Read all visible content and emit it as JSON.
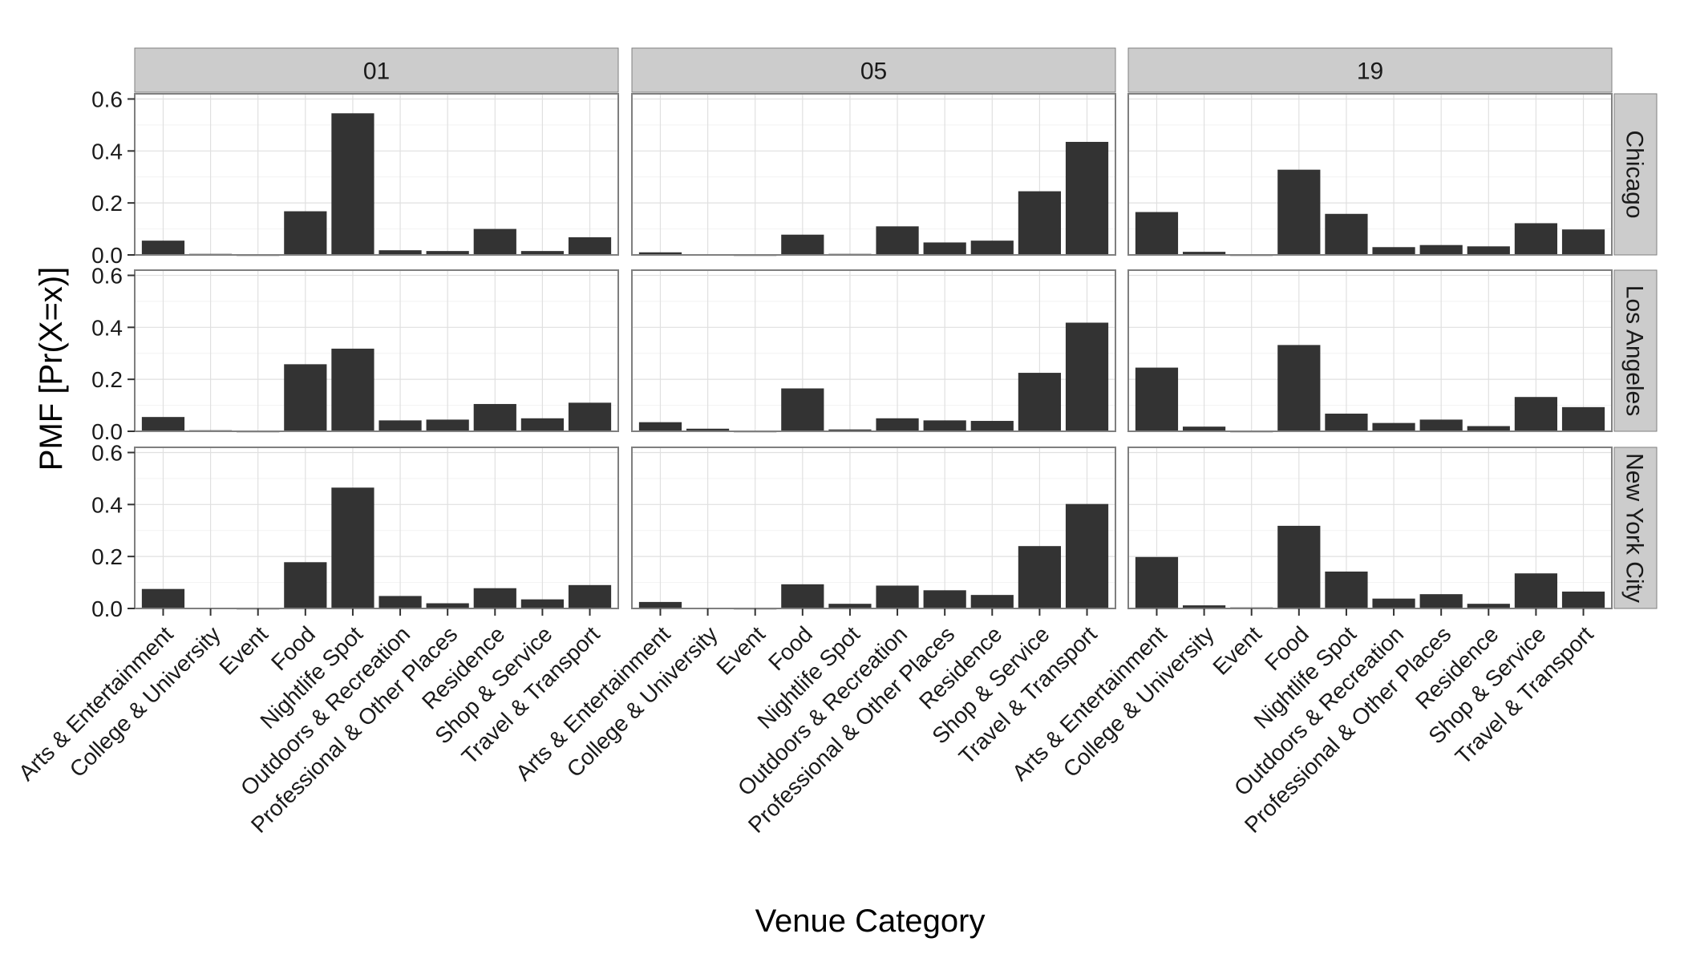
{
  "chart_data": {
    "type": "bar",
    "title": "",
    "xlabel": "Venue Category",
    "ylabel": "PMF [Pr(X=x)]",
    "ylim": [
      0,
      0.62
    ],
    "yticks": [
      "0.0",
      "0.2",
      "0.4",
      "0.6"
    ],
    "ytick_values": [
      0,
      0.2,
      0.4,
      0.6
    ],
    "grid": true,
    "categories": [
      "Arts & Entertainment",
      "College & University",
      "Event",
      "Food",
      "Nightlife Spot",
      "Outdoors & Recreation",
      "Professional & Other Places",
      "Residence",
      "Shop & Service",
      "Travel & Transport"
    ],
    "columns": [
      "01",
      "05",
      "19"
    ],
    "rows": [
      "Chicago",
      "Los Angeles",
      "New York City"
    ],
    "bar_color": "#333333",
    "panels": [
      {
        "row": "Chicago",
        "column": "01",
        "values": [
          0.055,
          0.004,
          0.0,
          0.168,
          0.545,
          0.018,
          0.015,
          0.1,
          0.015,
          0.068
        ]
      },
      {
        "row": "Chicago",
        "column": "05",
        "values": [
          0.01,
          0.003,
          0.0,
          0.078,
          0.004,
          0.11,
          0.048,
          0.055,
          0.245,
          0.435
        ]
      },
      {
        "row": "Chicago",
        "column": "19",
        "values": [
          0.165,
          0.012,
          0.0,
          0.328,
          0.158,
          0.03,
          0.038,
          0.033,
          0.122,
          0.098
        ]
      },
      {
        "row": "Los Angeles",
        "column": "01",
        "values": [
          0.055,
          0.004,
          0.0,
          0.258,
          0.318,
          0.042,
          0.045,
          0.105,
          0.05,
          0.11
        ]
      },
      {
        "row": "Los Angeles",
        "column": "05",
        "values": [
          0.035,
          0.01,
          0.0,
          0.165,
          0.007,
          0.05,
          0.042,
          0.04,
          0.225,
          0.418
        ]
      },
      {
        "row": "Los Angeles",
        "column": "19",
        "values": [
          0.245,
          0.018,
          0.0,
          0.332,
          0.068,
          0.032,
          0.045,
          0.02,
          0.132,
          0.093
        ]
      },
      {
        "row": "New York City",
        "column": "01",
        "values": [
          0.075,
          0.003,
          0.0,
          0.178,
          0.465,
          0.048,
          0.02,
          0.078,
          0.035,
          0.09
        ]
      },
      {
        "row": "New York City",
        "column": "05",
        "values": [
          0.025,
          0.003,
          0.0,
          0.093,
          0.018,
          0.088,
          0.07,
          0.052,
          0.24,
          0.402
        ]
      },
      {
        "row": "New York City",
        "column": "19",
        "values": [
          0.198,
          0.012,
          0.004,
          0.318,
          0.142,
          0.038,
          0.055,
          0.018,
          0.135,
          0.065
        ]
      }
    ]
  }
}
